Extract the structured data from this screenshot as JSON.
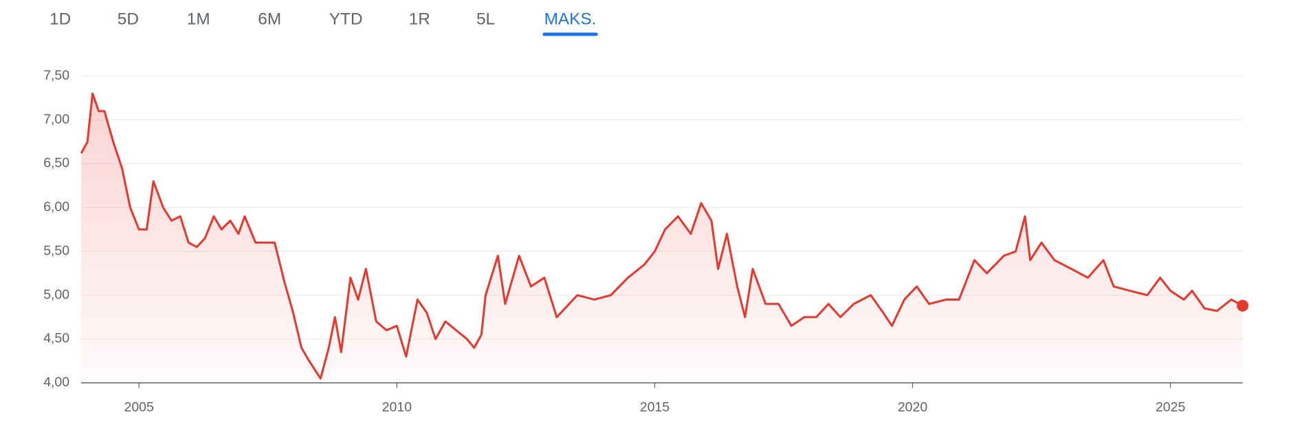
{
  "range_tabs": {
    "labels": [
      "1D",
      "5D",
      "1M",
      "6M",
      "YTD",
      "1R",
      "5L",
      "MAKS."
    ],
    "active": 7
  },
  "chart_data": {
    "type": "line",
    "color": "#e5392f",
    "grid": true,
    "xlim": [
      2003.88,
      2026.4
    ],
    "xticks": [
      2005,
      2010,
      2015,
      2020,
      2025
    ],
    "ylim": [
      4,
      7.5
    ],
    "yticks": [
      {
        "value": 4,
        "label": "4,00"
      },
      {
        "value": 4.5,
        "label": "4,50"
      },
      {
        "value": 5,
        "label": "5,00"
      },
      {
        "value": 5.5,
        "label": "5,50"
      },
      {
        "value": 6,
        "label": "6,00"
      },
      {
        "value": 6.5,
        "label": "6,50"
      },
      {
        "value": 7,
        "label": "7,00"
      },
      {
        "value": 7.5,
        "label": "7,50"
      }
    ],
    "x": [
      2003.88,
      2004.0,
      2004.1,
      2004.22,
      2004.33,
      2004.5,
      2004.67,
      2004.83,
      2005.0,
      2005.15,
      2005.28,
      2005.47,
      2005.63,
      2005.8,
      2005.96,
      2006.12,
      2006.28,
      2006.45,
      2006.6,
      2006.77,
      2006.93,
      2007.05,
      2007.26,
      2007.4,
      2007.63,
      2007.82,
      2007.99,
      2008.15,
      2008.3,
      2008.52,
      2008.68,
      2008.8,
      2008.92,
      2009.1,
      2009.25,
      2009.4,
      2009.6,
      2009.8,
      2010.0,
      2010.18,
      2010.4,
      2010.58,
      2010.75,
      2010.94,
      2011.15,
      2011.36,
      2011.5,
      2011.64,
      2011.72,
      2011.96,
      2012.1,
      2012.37,
      2012.6,
      2012.86,
      2013.1,
      2013.5,
      2013.83,
      2014.15,
      2014.48,
      2014.8,
      2015.0,
      2015.2,
      2015.45,
      2015.7,
      2015.9,
      2016.1,
      2016.23,
      2016.4,
      2016.6,
      2016.75,
      2016.9,
      2017.15,
      2017.4,
      2017.65,
      2017.9,
      2018.13,
      2018.37,
      2018.6,
      2018.86,
      2019.19,
      2019.43,
      2019.6,
      2019.84,
      2020.08,
      2020.32,
      2020.65,
      2020.9,
      2021.2,
      2021.44,
      2021.77,
      2022.0,
      2022.18,
      2022.28,
      2022.5,
      2022.75,
      2023.08,
      2023.4,
      2023.7,
      2023.9,
      2024.22,
      2024.55,
      2024.8,
      2025.0,
      2025.26,
      2025.42,
      2025.66,
      2025.9,
      2026.18,
      2026.4
    ],
    "values": [
      6.62,
      6.75,
      7.3,
      7.1,
      7.1,
      6.75,
      6.45,
      6.0,
      5.75,
      5.75,
      6.3,
      6.0,
      5.85,
      5.9,
      5.6,
      5.55,
      5.65,
      5.9,
      5.75,
      5.85,
      5.7,
      5.9,
      5.6,
      5.6,
      5.6,
      5.15,
      4.8,
      4.4,
      4.25,
      4.05,
      4.4,
      4.75,
      4.35,
      5.2,
      4.95,
      5.3,
      4.7,
      4.6,
      4.65,
      4.3,
      4.95,
      4.8,
      4.5,
      4.7,
      4.6,
      4.5,
      4.4,
      4.55,
      5.0,
      5.45,
      4.9,
      5.45,
      5.1,
      5.2,
      4.75,
      5.0,
      4.95,
      5.0,
      5.2,
      5.35,
      5.5,
      5.75,
      5.9,
      5.7,
      6.05,
      5.85,
      5.3,
      5.7,
      5.1,
      4.75,
      5.3,
      4.9,
      4.9,
      4.65,
      4.75,
      4.75,
      4.9,
      4.75,
      4.9,
      5.0,
      4.8,
      4.65,
      4.95,
      5.1,
      4.9,
      4.95,
      4.95,
      5.4,
      5.25,
      5.45,
      5.5,
      5.9,
      5.4,
      5.6,
      5.4,
      5.3,
      5.2,
      5.4,
      5.1,
      5.05,
      5.0,
      5.2,
      5.05,
      4.95,
      5.05,
      4.85,
      4.82,
      4.95,
      4.88
    ]
  }
}
